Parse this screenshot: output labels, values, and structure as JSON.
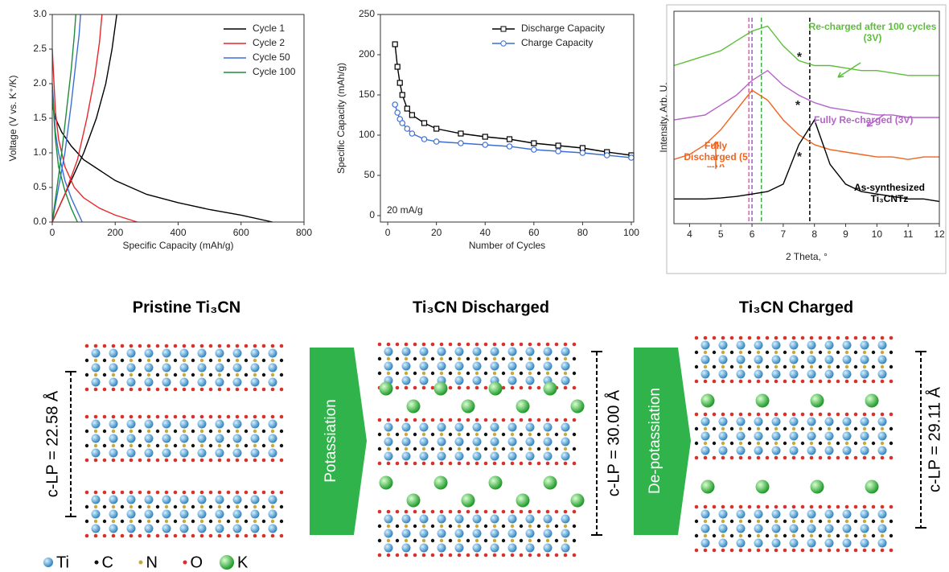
{
  "chart_data": [
    {
      "type": "line",
      "x_label": "Specific Capacity (mAh/g)",
      "y_label": "Voltage (V vs. K⁺/K)",
      "xlim": [
        0,
        800
      ],
      "xticks": [
        0,
        200,
        400,
        600,
        800
      ],
      "ylim": [
        0,
        3
      ],
      "yticks": [
        {
          "value": 0,
          "label": "0.0"
        },
        0.5,
        {
          "value": 1,
          "label": "1.0"
        },
        1.5,
        {
          "value": 2,
          "label": "2.0"
        },
        2.5,
        {
          "value": 3,
          "label": "3.0"
        }
      ],
      "legend": "upper-right",
      "series": [
        {
          "name": "Cycle 1",
          "color": "#000000",
          "x": [
            0,
            10,
            30,
            60,
            100,
            150,
            200,
            300,
            400,
            500,
            600,
            700,
            null,
            0,
            30,
            60,
            100,
            140,
            170,
            190,
            205
          ],
          "values": [
            1.7,
            1.5,
            1.3,
            1.1,
            0.9,
            0.75,
            0.6,
            0.4,
            0.28,
            0.18,
            0.1,
            0,
            null,
            0,
            0.3,
            0.6,
            1.0,
            1.5,
            2.0,
            2.5,
            3.0
          ]
        },
        {
          "name": "Cycle 2",
          "color": "#e8262a",
          "x": [
            0,
            10,
            20,
            40,
            70,
            100,
            150,
            200,
            270,
            null,
            0,
            40,
            80,
            110,
            135,
            150,
            158
          ],
          "values": [
            2.5,
            1.6,
            1.2,
            0.8,
            0.5,
            0.35,
            0.2,
            0.1,
            0,
            null,
            0,
            0.4,
            0.9,
            1.5,
            2.1,
            2.6,
            3.0
          ]
        },
        {
          "name": "Cycle 50",
          "color": "#3b6fd8",
          "x": [
            0,
            10,
            20,
            40,
            60,
            80,
            95,
            null,
            0,
            20,
            40,
            60,
            75,
            85,
            90
          ],
          "values": [
            2.0,
            1.3,
            1.0,
            0.6,
            0.35,
            0.15,
            0,
            null,
            0,
            0.5,
            1.0,
            1.7,
            2.3,
            2.7,
            3.0
          ]
        },
        {
          "name": "Cycle 100",
          "color": "#1e8c3a",
          "x": [
            0,
            10,
            20,
            40,
            60,
            80,
            null,
            0,
            15,
            30,
            45,
            60,
            70,
            75
          ],
          "values": [
            1.9,
            1.2,
            0.8,
            0.45,
            0.2,
            0,
            null,
            0,
            0.5,
            1.0,
            1.6,
            2.2,
            2.7,
            3.0
          ]
        }
      ]
    },
    {
      "type": "line",
      "x_label": "Number of Cycles",
      "y_label": "Specific Capacity (mAh/g)",
      "annotation": "20 mA/g",
      "xlim": [
        -3,
        101
      ],
      "xticks": [
        0,
        20,
        40,
        60,
        80,
        100
      ],
      "ylim": [
        -8,
        250
      ],
      "yticks": [
        0,
        50,
        100,
        150,
        200,
        250
      ],
      "legend": "upper-right",
      "x": [
        3,
        4,
        5,
        6,
        8,
        10,
        15,
        20,
        30,
        40,
        50,
        60,
        70,
        80,
        90,
        100
      ],
      "series": [
        {
          "name": "Discharge Capacity",
          "color": "#000000",
          "marker": "square",
          "values": [
            213,
            185,
            165,
            150,
            133,
            125,
            115,
            108,
            102,
            98,
            95,
            90,
            87,
            84,
            79,
            75
          ]
        },
        {
          "name": "Charge Capacity",
          "color": "#3a6fd0",
          "marker": "circle",
          "values": [
            138,
            128,
            120,
            115,
            108,
            102,
            95,
            92,
            90,
            88,
            86,
            82,
            80,
            78,
            75,
            72
          ]
        }
      ]
    },
    {
      "type": "line",
      "x_label": "2 Theta, °",
      "y_label": "Intensity, Arb. U.",
      "peak_marker": "*",
      "xlim": [
        3.5,
        12
      ],
      "xticks": [
        4,
        5,
        6,
        7,
        8,
        9,
        10,
        11,
        12
      ],
      "ylim": [
        0,
        4.3
      ],
      "x": [
        3.5,
        4,
        4.5,
        5,
        5.5,
        6,
        6.5,
        7,
        7.5,
        8,
        8.5,
        9,
        9.5,
        10,
        10.5,
        11,
        11.5,
        12
      ],
      "vlines": [
        {
          "x": 5.9,
          "color": "#e0609f"
        },
        {
          "x": 6.0,
          "color": "#9a5cc8"
        },
        {
          "x": 6.3,
          "color": "#3cb044"
        },
        {
          "x": 7.85,
          "color": "#000000"
        }
      ],
      "series": [
        {
          "name": "Re-charged after 100 cycles (3V)",
          "color": "#5cbf3a",
          "values": [
            3.2,
            3.3,
            3.4,
            3.5,
            3.7,
            3.9,
            4.0,
            3.6,
            3.3,
            3.2,
            3.2,
            3.15,
            3.1,
            3.1,
            3.05,
            3.0,
            3.0,
            3.0
          ]
        },
        {
          "name": "Fully Re-charged (3V)",
          "color": "#b563c8",
          "values": [
            2.1,
            2.15,
            2.2,
            2.4,
            2.6,
            2.9,
            3.1,
            2.8,
            2.6,
            2.45,
            2.35,
            2.3,
            2.25,
            2.2,
            2.2,
            2.15,
            2.15,
            2.15
          ]
        },
        {
          "name": "Fully Discharged (5 mV)",
          "color": "#f0641e",
          "values": [
            1.3,
            1.4,
            1.6,
            1.9,
            2.3,
            2.7,
            2.5,
            2.1,
            1.8,
            1.6,
            1.5,
            1.45,
            1.4,
            1.35,
            1.35,
            1.3,
            1.35,
            1.35
          ]
        },
        {
          "name": "As-synthesized Ti₃CNTz",
          "color": "#000000",
          "values": [
            0.5,
            0.5,
            0.5,
            0.52,
            0.55,
            0.6,
            0.65,
            0.8,
            1.6,
            2.1,
            1.2,
            0.8,
            0.65,
            0.6,
            0.55,
            0.5,
            0.5,
            0.45
          ]
        }
      ]
    }
  ],
  "diagram": {
    "panels": [
      {
        "title": "Pristine Ti₃CN",
        "spacing": "c-LP = 22.58 Å"
      },
      {
        "title": "Ti₃CN Discharged",
        "spacing": "c-LP = 30.00 Å"
      },
      {
        "title": "Ti₃CN Charged",
        "spacing": "c-LP = 29.11 Å"
      }
    ],
    "arrows": [
      "Potassiation",
      "De-potassiation"
    ],
    "legend": [
      "Ti",
      "C",
      "N",
      "O",
      "K"
    ]
  }
}
